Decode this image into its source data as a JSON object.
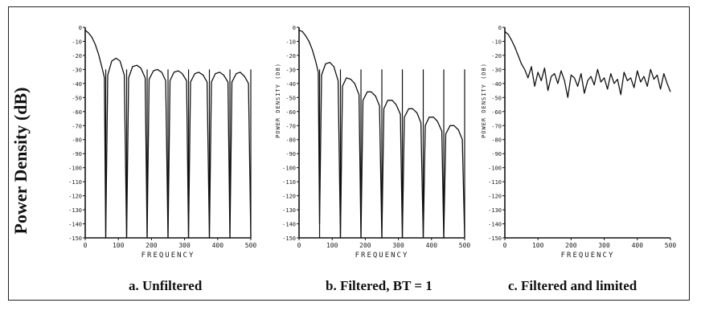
{
  "figure": {
    "ylabel_main": "Power Density (dB)"
  },
  "chart_data": [
    {
      "type": "line",
      "caption": "a.  Unfiltered",
      "xlabel": "FREQUENCY",
      "ylabel": "",
      "x_ticks": [
        "0",
        "100",
        "200",
        "300",
        "400",
        "500"
      ],
      "y_ticks": [
        "0",
        "-10",
        "-20",
        "-30",
        "-40",
        "-50",
        "-60",
        "-70",
        "-80",
        "-90",
        "-100",
        "-110",
        "-120",
        "-130",
        "-140",
        "-150"
      ],
      "xlim": [
        0,
        500
      ],
      "ylim": [
        -150,
        0
      ],
      "nulls": [
        62,
        125,
        187,
        250,
        312,
        375,
        437,
        500
      ],
      "x": [
        0,
        10,
        20,
        30,
        40,
        50,
        58,
        62,
        68,
        80,
        93,
        105,
        118,
        125,
        131,
        143,
        156,
        168,
        181,
        187,
        193,
        206,
        218,
        231,
        243,
        250,
        256,
        268,
        281,
        293,
        306,
        312,
        318,
        331,
        343,
        356,
        368,
        375,
        381,
        393,
        406,
        418,
        431,
        437,
        443,
        456,
        468,
        481,
        493,
        500
      ],
      "y": [
        -2,
        -4,
        -7,
        -12,
        -19,
        -28,
        -36,
        -150,
        -34,
        -24,
        -22,
        -24,
        -34,
        -150,
        -36,
        -28,
        -27,
        -29,
        -36,
        -150,
        -37,
        -31,
        -30,
        -32,
        -38,
        -150,
        -38,
        -32,
        -31,
        -33,
        -38,
        -150,
        -39,
        -33,
        -32,
        -34,
        -39,
        -150,
        -39,
        -33,
        -32,
        -34,
        -39,
        -150,
        -39,
        -33,
        -32,
        -35,
        -40,
        -150
      ]
    },
    {
      "type": "line",
      "caption": "b. Filtered, BT = 1",
      "xlabel": "FREQUENCY",
      "ylabel": "POWER DENSITY (DB)",
      "x_ticks": [
        "0",
        "100",
        "200",
        "300",
        "400",
        "500"
      ],
      "y_ticks": [
        "0",
        "-10",
        "-20",
        "-30",
        "-40",
        "-50",
        "-60",
        "-70",
        "-80",
        "-90",
        "-100",
        "-110",
        "-120",
        "-130",
        "-140",
        "-150"
      ],
      "xlim": [
        0,
        500
      ],
      "ylim": [
        -150,
        0
      ],
      "nulls": [
        62,
        125,
        187,
        250,
        312,
        375,
        437,
        500
      ],
      "x": [
        0,
        10,
        20,
        30,
        40,
        50,
        58,
        62,
        68,
        80,
        93,
        105,
        118,
        125,
        131,
        143,
        156,
        168,
        181,
        187,
        193,
        206,
        218,
        231,
        243,
        250,
        256,
        268,
        281,
        293,
        306,
        312,
        318,
        331,
        343,
        356,
        368,
        375,
        381,
        393,
        406,
        418,
        431,
        437,
        443,
        456,
        468,
        481,
        493,
        500
      ],
      "y": [
        -2,
        -3,
        -6,
        -10,
        -16,
        -24,
        -32,
        -140,
        -34,
        -26,
        -25,
        -28,
        -38,
        -150,
        -42,
        -36,
        -37,
        -40,
        -48,
        -150,
        -52,
        -46,
        -46,
        -49,
        -56,
        -150,
        -58,
        -52,
        -52,
        -55,
        -62,
        -150,
        -64,
        -58,
        -58,
        -61,
        -68,
        -150,
        -70,
        -64,
        -64,
        -67,
        -74,
        -150,
        -76,
        -70,
        -70,
        -73,
        -80,
        -150
      ]
    },
    {
      "type": "line",
      "caption": "c.  Filtered and limited",
      "xlabel": "FREQUENCY",
      "ylabel": "POWER DENSITY (DB)",
      "x_ticks": [
        "0",
        "100",
        "200",
        "300",
        "400",
        "500"
      ],
      "y_ticks": [
        "0",
        "-10",
        "-20",
        "-30",
        "-40",
        "-50",
        "-60",
        "-70",
        "-80",
        "-90",
        "-100",
        "-110",
        "-120",
        "-130",
        "-140",
        "-150"
      ],
      "xlim": [
        0,
        500
      ],
      "ylim": [
        -150,
        0
      ],
      "nulls": [],
      "x": [
        0,
        10,
        20,
        30,
        40,
        50,
        60,
        70,
        80,
        90,
        100,
        110,
        120,
        130,
        140,
        150,
        160,
        170,
        180,
        190,
        200,
        210,
        220,
        230,
        240,
        250,
        260,
        270,
        280,
        290,
        300,
        310,
        320,
        330,
        340,
        350,
        360,
        370,
        380,
        390,
        400,
        410,
        420,
        430,
        440,
        450,
        460,
        470,
        480,
        490,
        500
      ],
      "y": [
        -3,
        -5,
        -9,
        -14,
        -20,
        -26,
        -30,
        -36,
        -28,
        -42,
        -32,
        -38,
        -29,
        -45,
        -35,
        -33,
        -40,
        -31,
        -38,
        -50,
        -34,
        -36,
        -42,
        -33,
        -47,
        -38,
        -35,
        -41,
        -30,
        -39,
        -36,
        -44,
        -33,
        -40,
        -37,
        -48,
        -32,
        -38,
        -36,
        -43,
        -31,
        -39,
        -35,
        -42,
        -30,
        -37,
        -34,
        -44,
        -33,
        -40,
        -46
      ]
    }
  ]
}
